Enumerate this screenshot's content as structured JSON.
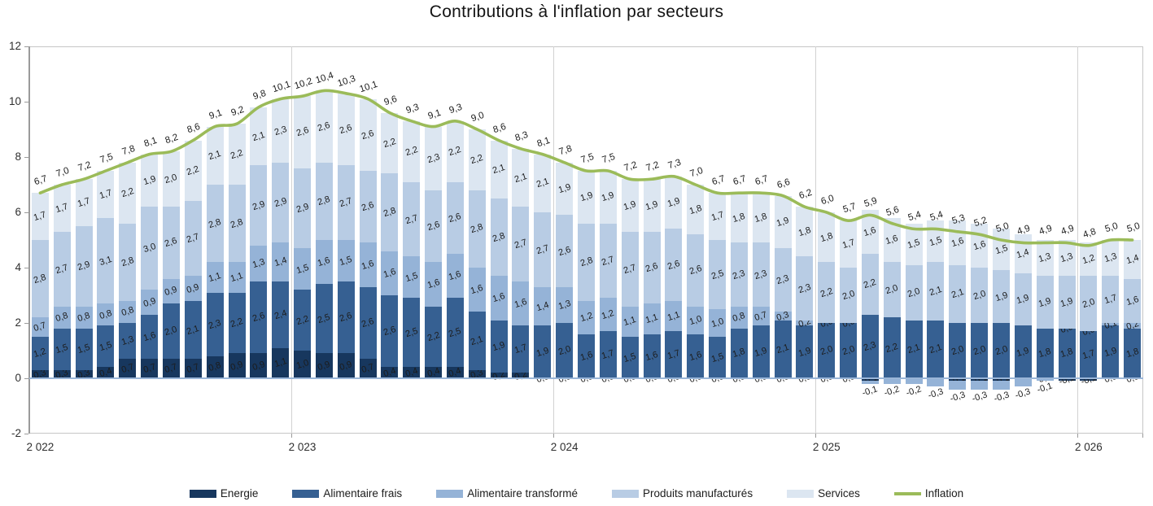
{
  "title": "Contributions à l'inflation par secteurs",
  "chart_data": {
    "type": "bar",
    "subtype": "stacked-bars-with-line-overlay",
    "title": "Contributions à l'inflation par secteurs",
    "xlabel": "",
    "ylabel": "",
    "ylim": [
      -2,
      12
    ],
    "y_axis_ticks": [
      12,
      10,
      8,
      6,
      4,
      2,
      0,
      -2
    ],
    "x_axis_tick_labels": [
      "2 022",
      "2 023",
      "2 024",
      "2 025",
      "2 026"
    ],
    "grid": "vertical-year-gridlines-only",
    "legend_position": "bottom",
    "data_labels": true,
    "number_format": "french-comma-one-decimal",
    "x": [
      "2022-01",
      "2022-02",
      "2022-03",
      "2022-04",
      "2022-05",
      "2022-06",
      "2022-07",
      "2022-08",
      "2022-09",
      "2022-10",
      "2022-11",
      "2022-12",
      "2023-01",
      "2023-02",
      "2023-03",
      "2023-04",
      "2023-05",
      "2023-06",
      "2023-07",
      "2023-08",
      "2023-09",
      "2023-10",
      "2023-11",
      "2023-12",
      "2024-01",
      "2024-02",
      "2024-03",
      "2024-04",
      "2024-05",
      "2024-06",
      "2024-07",
      "2024-08",
      "2024-09",
      "2024-10",
      "2024-11",
      "2024-12",
      "2025-01",
      "2025-02",
      "2025-03",
      "2025-04",
      "2025-05",
      "2025-06",
      "2025-07",
      "2025-08",
      "2025-09",
      "2025-10",
      "2025-11",
      "2025-12",
      "2026-01",
      "2026-02",
      "2026-03"
    ],
    "series": [
      {
        "name": "Energie",
        "type": "bar",
        "color": "#17375E",
        "values": [
          0.3,
          0.3,
          0.3,
          0.4,
          0.7,
          0.7,
          0.7,
          0.7,
          0.8,
          0.9,
          0.9,
          1.1,
          1.0,
          0.9,
          0.9,
          0.7,
          0.4,
          0.4,
          0.4,
          0.4,
          0.3,
          0.2,
          0.2,
          0.0,
          0.0,
          0.0,
          0.0,
          0.0,
          0.0,
          0.0,
          0.0,
          0.0,
          0.0,
          0.0,
          0.0,
          0.0,
          0.0,
          0.0,
          -0.1,
          0.0,
          0.0,
          0.0,
          -0.1,
          -0.1,
          -0.1,
          0.0,
          0.0,
          -0.1,
          -0.1,
          0.0,
          0.0
        ]
      },
      {
        "name": "Alimentaire frais",
        "type": "bar",
        "color": "#366092",
        "values": [
          1.2,
          1.5,
          1.5,
          1.5,
          1.3,
          1.6,
          2.0,
          2.1,
          2.3,
          2.2,
          2.6,
          2.4,
          2.2,
          2.5,
          2.6,
          2.6,
          2.6,
          2.5,
          2.2,
          2.5,
          2.1,
          1.9,
          1.7,
          1.9,
          2.0,
          1.6,
          1.7,
          1.5,
          1.6,
          1.7,
          1.6,
          1.5,
          1.8,
          1.9,
          2.1,
          1.9,
          2.0,
          2.0,
          2.3,
          2.2,
          2.1,
          2.1,
          2.0,
          2.0,
          2.0,
          1.9,
          1.8,
          1.8,
          1.7,
          1.9,
          1.8
        ]
      },
      {
        "name": "Alimentaire transformé",
        "type": "bar",
        "color": "#95B3D7",
        "values": [
          0.7,
          0.8,
          0.8,
          0.8,
          0.8,
          0.9,
          0.9,
          0.9,
          1.1,
          1.1,
          1.3,
          1.4,
          1.5,
          1.6,
          1.5,
          1.6,
          1.6,
          1.5,
          1.6,
          1.6,
          1.6,
          1.6,
          1.6,
          1.4,
          1.3,
          1.2,
          1.2,
          1.1,
          1.1,
          1.1,
          1.0,
          1.0,
          0.8,
          0.7,
          0.3,
          0.2,
          0.0,
          0.0,
          -0.1,
          -0.2,
          -0.2,
          -0.3,
          -0.3,
          -0.3,
          -0.3,
          -0.3,
          -0.1,
          0.0,
          0.0,
          0.1,
          0.2
        ]
      },
      {
        "name": "Produits manufacturés",
        "type": "bar",
        "color": "#B8CCE4",
        "values": [
          2.8,
          2.7,
          2.9,
          3.1,
          2.8,
          3.0,
          2.6,
          2.7,
          2.8,
          2.8,
          2.9,
          2.9,
          2.9,
          2.8,
          2.7,
          2.6,
          2.8,
          2.7,
          2.6,
          2.6,
          2.8,
          2.8,
          2.7,
          2.7,
          2.6,
          2.8,
          2.7,
          2.7,
          2.6,
          2.6,
          2.6,
          2.5,
          2.3,
          2.3,
          2.3,
          2.3,
          2.2,
          2.0,
          2.2,
          2.0,
          2.0,
          2.1,
          2.1,
          2.0,
          1.9,
          1.9,
          1.9,
          1.9,
          2.0,
          1.7,
          1.6
        ]
      },
      {
        "name": "Services",
        "type": "bar",
        "color": "#DCE6F1",
        "values": [
          1.7,
          1.7,
          1.7,
          1.7,
          2.2,
          1.9,
          2.0,
          2.2,
          2.1,
          2.2,
          2.1,
          2.3,
          2.6,
          2.6,
          2.6,
          2.6,
          2.2,
          2.2,
          2.3,
          2.2,
          2.2,
          2.1,
          2.1,
          2.1,
          1.9,
          1.9,
          1.9,
          1.9,
          1.9,
          1.9,
          1.8,
          1.7,
          1.8,
          1.8,
          1.9,
          1.8,
          1.8,
          1.7,
          1.6,
          1.6,
          1.5,
          1.5,
          1.6,
          1.6,
          1.5,
          1.4,
          1.3,
          1.3,
          1.2,
          1.3,
          1.4
        ]
      },
      {
        "name": "Inflation",
        "type": "line",
        "color": "#9BBB59",
        "values": [
          6.7,
          7.0,
          7.2,
          7.5,
          7.8,
          8.1,
          8.2,
          8.6,
          9.1,
          9.2,
          9.8,
          10.1,
          10.2,
          10.4,
          10.3,
          10.1,
          9.6,
          9.3,
          9.1,
          9.3,
          9.0,
          8.6,
          8.3,
          8.1,
          7.8,
          7.5,
          7.5,
          7.2,
          7.2,
          7.3,
          7.0,
          6.7,
          6.7,
          6.7,
          6.6,
          6.2,
          6.0,
          5.7,
          5.9,
          5.6,
          5.4,
          5.4,
          5.3,
          5.2,
          5.0,
          4.9,
          4.9,
          4.9,
          4.8,
          5.0,
          5.0
        ]
      }
    ]
  }
}
